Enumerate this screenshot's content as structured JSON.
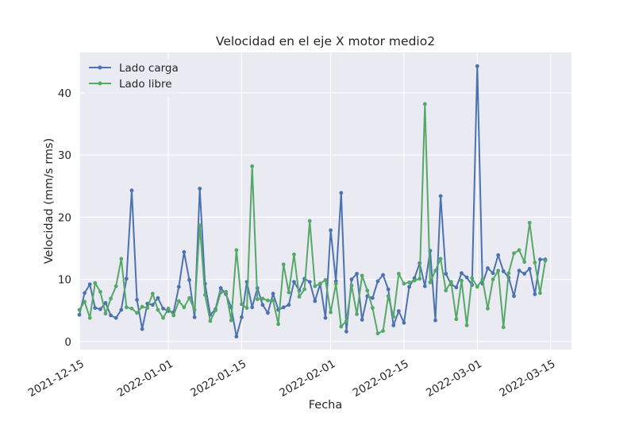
{
  "chart_data": {
    "type": "line",
    "title": "Velocidad en el eje X motor medio2",
    "xlabel": "Fecha",
    "ylabel": "Velocidad (mm/s rms)",
    "xlim": [
      "2021-12-15",
      "2022-03-19"
    ],
    "ylim": [
      -1.3,
      46.5
    ],
    "grid": true,
    "legend_position": "top-left",
    "x_ticks": [
      "2021-12-15",
      "2022-01-01",
      "2022-01-15",
      "2022-02-01",
      "2022-02-15",
      "2022-03-01",
      "2022-03-15"
    ],
    "y_ticks": [
      0,
      10,
      20,
      30,
      40
    ],
    "x": [
      "2021-12-15",
      "2021-12-16",
      "2021-12-17",
      "2021-12-18",
      "2021-12-19",
      "2021-12-20",
      "2021-12-21",
      "2021-12-22",
      "2021-12-23",
      "2021-12-24",
      "2021-12-25",
      "2021-12-26",
      "2021-12-27",
      "2021-12-28",
      "2021-12-29",
      "2021-12-30",
      "2021-12-31",
      "2022-01-01",
      "2022-01-02",
      "2022-01-03",
      "2022-01-04",
      "2022-01-05",
      "2022-01-06",
      "2022-01-07",
      "2022-01-08",
      "2022-01-09",
      "2022-01-10",
      "2022-01-11",
      "2022-01-12",
      "2022-01-13",
      "2022-01-14",
      "2022-01-15",
      "2022-01-16",
      "2022-01-17",
      "2022-01-18",
      "2022-01-19",
      "2022-01-20",
      "2022-01-21",
      "2022-01-22",
      "2022-01-23",
      "2022-01-24",
      "2022-01-25",
      "2022-01-26",
      "2022-01-27",
      "2022-01-28",
      "2022-01-29",
      "2022-01-30",
      "2022-01-31",
      "2022-02-01",
      "2022-02-02",
      "2022-02-03",
      "2022-02-04",
      "2022-02-05",
      "2022-02-06",
      "2022-02-07",
      "2022-02-08",
      "2022-02-09",
      "2022-02-10",
      "2022-02-11",
      "2022-02-12",
      "2022-02-13",
      "2022-02-14",
      "2022-02-15",
      "2022-02-16",
      "2022-02-17",
      "2022-02-18",
      "2022-02-19",
      "2022-02-20",
      "2022-02-21",
      "2022-02-22",
      "2022-02-23",
      "2022-02-24",
      "2022-02-25",
      "2022-02-26",
      "2022-02-27",
      "2022-02-28",
      "2022-03-01",
      "2022-03-02",
      "2022-03-03",
      "2022-03-04",
      "2022-03-05",
      "2022-03-06",
      "2022-03-07",
      "2022-03-08",
      "2022-03-09",
      "2022-03-10",
      "2022-03-11",
      "2022-03-12",
      "2022-03-13",
      "2022-03-14"
    ],
    "series": [
      {
        "name": "Lado carga",
        "color": "#4c72b0",
        "values": [
          4.3,
          7.8,
          9.2,
          5.4,
          5.2,
          6.2,
          4.2,
          3.8,
          5.1,
          10.1,
          24.3,
          6.7,
          2.0,
          6.1,
          5.9,
          7.0,
          5.3,
          4.9,
          4.7,
          8.8,
          14.4,
          9.9,
          3.9,
          24.6,
          9.3,
          4.3,
          5.2,
          8.6,
          7.6,
          5.5,
          0.8,
          3.9,
          9.6,
          5.5,
          8.6,
          5.9,
          4.6,
          7.7,
          5.1,
          5.5,
          5.9,
          9.6,
          8.2,
          10.1,
          9.6,
          6.5,
          9.3,
          3.8,
          17.9,
          9.7,
          23.9,
          1.6,
          10.0,
          10.9,
          3.5,
          7.3,
          7.0,
          9.7,
          10.7,
          8.4,
          2.6,
          4.9,
          3.0,
          8.8,
          10.2,
          12.6,
          8.9,
          14.6,
          3.4,
          23.4,
          10.9,
          9.2,
          8.7,
          11.0,
          10.3,
          9.1,
          44.3,
          9.3,
          11.8,
          11.0,
          13.9,
          11.3,
          10.3,
          7.3,
          11.4,
          10.9,
          11.7,
          7.6,
          13.2,
          13.2
        ]
      },
      {
        "name": "Lado libre",
        "color": "#55a868",
        "values": [
          5.1,
          6.4,
          3.8,
          9.4,
          8.0,
          4.5,
          6.9,
          8.9,
          13.3,
          5.5,
          5.3,
          4.6,
          5.6,
          5.4,
          7.7,
          5.1,
          3.8,
          5.3,
          4.2,
          6.5,
          5.5,
          7.0,
          5.1,
          18.7,
          7.5,
          3.3,
          5.0,
          7.9,
          8.0,
          3.4,
          14.7,
          6.0,
          5.4,
          28.2,
          6.8,
          6.9,
          6.6,
          6.6,
          2.8,
          12.4,
          7.9,
          14.0,
          7.2,
          8.4,
          19.4,
          8.9,
          9.3,
          9.9,
          4.7,
          9.3,
          2.4,
          3.3,
          9.0,
          4.4,
          10.6,
          8.2,
          5.4,
          1.3,
          1.7,
          7.3,
          4.0,
          10.9,
          9.3,
          9.5,
          9.8,
          10.1,
          38.2,
          9.5,
          11.4,
          13.3,
          8.2,
          9.6,
          3.6,
          9.8,
          2.6,
          10.2,
          8.8,
          10.0,
          5.3,
          10.0,
          11.4,
          2.3,
          11.0,
          14.2,
          14.7,
          12.8,
          19.1,
          12.7,
          7.8,
          13.0
        ]
      }
    ]
  }
}
